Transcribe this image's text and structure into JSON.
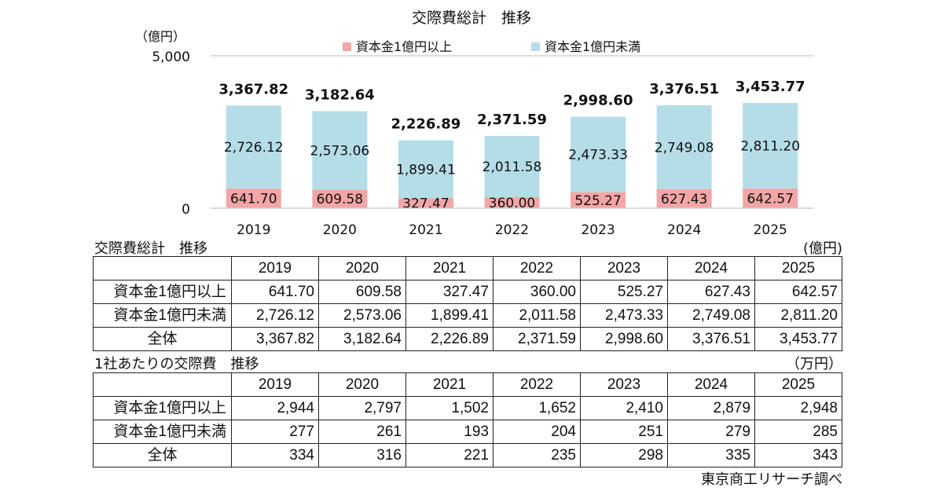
{
  "chart_data": {
    "type": "bar",
    "stacked": true,
    "title": "交際費総計　推移",
    "ylabel": "（億円）",
    "y_ticks": [
      "5,000",
      "0"
    ],
    "ylim": [
      0,
      5000
    ],
    "grid": true,
    "legend_position": "top",
    "categories": [
      "2019",
      "2020",
      "2021",
      "2022",
      "2023",
      "2024",
      "2025"
    ],
    "series": [
      {
        "name": "資本金1億円以上",
        "color": "#f4a5a6",
        "values": [
          641.7,
          609.58,
          327.47,
          360.0,
          525.27,
          627.43,
          642.57
        ],
        "labels": [
          "641.70",
          "609.58",
          "327.47",
          "360.00",
          "525.27",
          "627.43",
          "642.57"
        ]
      },
      {
        "name": "資本金1億円未満",
        "color": "#b5dde7",
        "values": [
          2726.12,
          2573.06,
          1899.41,
          2011.58,
          2473.33,
          2749.08,
          2811.2
        ],
        "labels": [
          "2,726.12",
          "2,573.06",
          "1,899.41",
          "2,011.58",
          "2,473.33",
          "2,749.08",
          "2,811.20"
        ]
      }
    ],
    "totals": [
      "3,367.82",
      "3,182.64",
      "2,226.89",
      "2,371.59",
      "2,998.60",
      "3,376.51",
      "3,453.77"
    ]
  },
  "table1": {
    "title": "交際費総計　推移",
    "unit": "(億円)",
    "years": [
      "2019",
      "2020",
      "2021",
      "2022",
      "2023",
      "2024",
      "2025"
    ],
    "rows": [
      {
        "label": "資本金1億円以上",
        "values": [
          "641.70",
          "609.58",
          "327.47",
          "360.00",
          "525.27",
          "627.43",
          "642.57"
        ]
      },
      {
        "label": "資本金1億円未満",
        "values": [
          "2,726.12",
          "2,573.06",
          "1,899.41",
          "2,011.58",
          "2,473.33",
          "2,749.08",
          "2,811.20"
        ]
      },
      {
        "label": "全体",
        "values": [
          "3,367.82",
          "3,182.64",
          "2,226.89",
          "2,371.59",
          "2,998.60",
          "3,376.51",
          "3,453.77"
        ]
      }
    ]
  },
  "table2": {
    "title": "1社あたりの交際費　推移",
    "unit": "（万円）",
    "years": [
      "2019",
      "2020",
      "2021",
      "2022",
      "2023",
      "2024",
      "2025"
    ],
    "rows": [
      {
        "label": "資本金1億円以上",
        "values": [
          "2,944",
          "2,797",
          "1,502",
          "1,652",
          "2,410",
          "2,879",
          "2,948"
        ]
      },
      {
        "label": "資本金1億円未満",
        "values": [
          "277",
          "261",
          "193",
          "204",
          "251",
          "279",
          "285"
        ]
      },
      {
        "label": "全体",
        "values": [
          "334",
          "316",
          "221",
          "235",
          "298",
          "335",
          "343"
        ]
      }
    ]
  },
  "source": "東京商工リサーチ調べ"
}
